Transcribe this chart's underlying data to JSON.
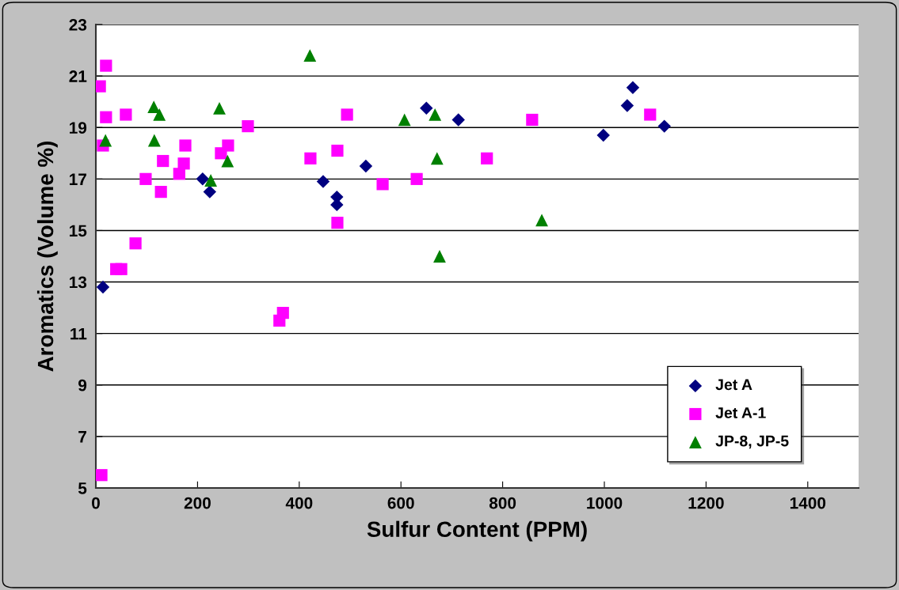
{
  "chart_data": {
    "type": "scatter",
    "xlabel": "Sulfur Content (PPM)",
    "ylabel": "Aromatics (Volume %)",
    "xlim": [
      0,
      1500
    ],
    "xticks": [
      0,
      200,
      400,
      600,
      800,
      1000,
      1200,
      1400
    ],
    "ylim": [
      5,
      23
    ],
    "yticks": [
      5,
      7,
      9,
      11,
      13,
      15,
      17,
      19,
      21,
      23
    ],
    "grid": "y",
    "legend": "bottom right",
    "series": [
      {
        "name": "Jet A",
        "color": "#000080",
        "marker": "diamond",
        "x": [
          14,
          210,
          224,
          447,
          474,
          474,
          531,
          650,
          713,
          998,
          1045,
          1056,
          1118
        ],
        "values": [
          12.8,
          17.0,
          16.5,
          16.9,
          16.3,
          16.0,
          17.5,
          19.75,
          19.3,
          18.7,
          19.85,
          20.55,
          19.05
        ]
      },
      {
        "name": "Jet A-1",
        "color": "#ff00ff",
        "marker": "square",
        "x": [
          8,
          20,
          20,
          14,
          11,
          40,
          50,
          59,
          78,
          98,
          128,
          132,
          164,
          173,
          176,
          246,
          260,
          299,
          361,
          368,
          422,
          475,
          475,
          494,
          564,
          631,
          769,
          858,
          1090
        ],
        "values": [
          20.6,
          21.4,
          19.4,
          18.3,
          5.5,
          13.5,
          13.5,
          19.5,
          14.5,
          17.0,
          16.5,
          17.7,
          17.2,
          17.6,
          18.3,
          18.0,
          18.3,
          19.05,
          11.5,
          11.8,
          17.8,
          18.1,
          15.3,
          19.5,
          16.8,
          17.0,
          17.8,
          19.3,
          19.5
        ]
      },
      {
        "name": "JP-8, JP-5",
        "color": "#008000",
        "marker": "triangle",
        "x": [
          19,
          114,
          115,
          125,
          226,
          243,
          259,
          421,
          607,
          667,
          671,
          676,
          877
        ],
        "values": [
          18.5,
          19.8,
          18.5,
          19.5,
          16.95,
          19.75,
          17.7,
          21.8,
          19.3,
          19.5,
          17.8,
          14.0,
          15.4
        ]
      }
    ]
  }
}
